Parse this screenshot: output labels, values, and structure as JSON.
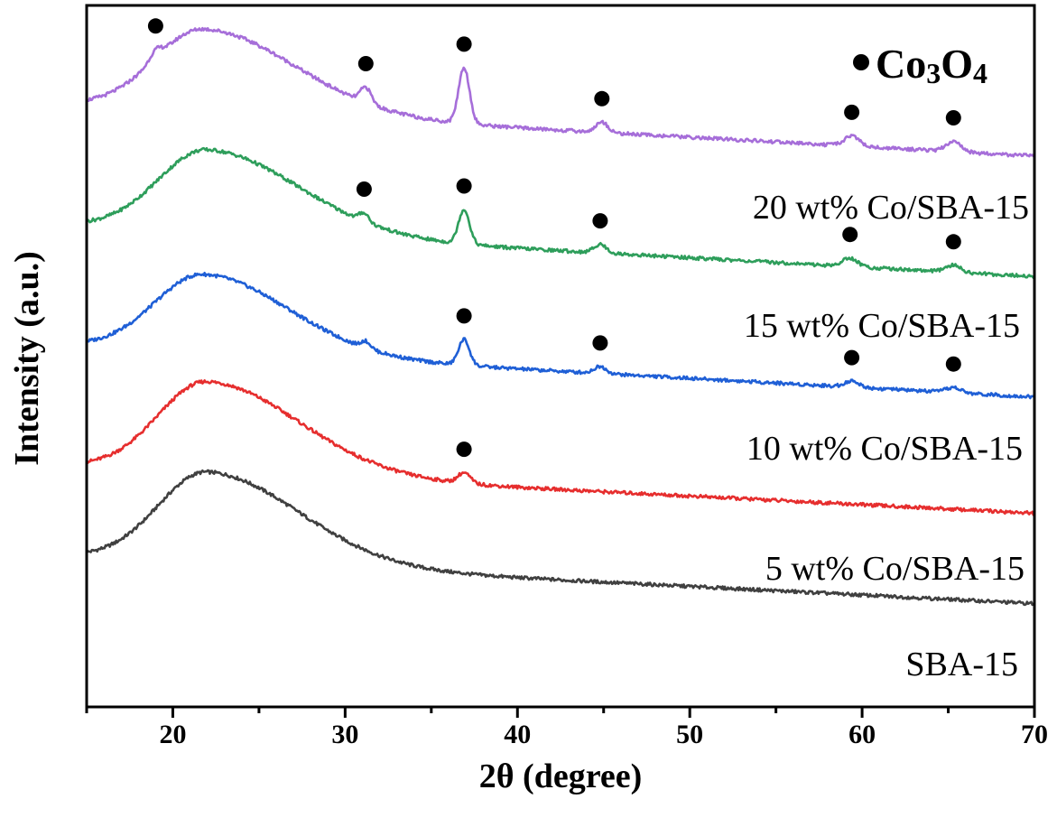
{
  "chart_data": {
    "type": "line",
    "title": "",
    "xlabel": "2θ (degree)",
    "ylabel": "Intensity (a.u.)",
    "xlim": [
      15,
      70
    ],
    "x_ticks": [
      20,
      30,
      40,
      50,
      60,
      70
    ],
    "y_ticks_shown": false,
    "legend": {
      "marker": "filled-circle",
      "formula_parts": [
        "Co",
        "3",
        "O",
        "4"
      ],
      "position": "top-right"
    },
    "series": [
      {
        "name": "SBA-15",
        "color": "#404040",
        "offset": 0,
        "hump": {
          "center": 22,
          "height": 0.105,
          "width_left": 4.0,
          "width_right": 7.5
        },
        "baseline_start": 0.055,
        "baseline_end": 0,
        "peaks": []
      },
      {
        "name": "5 wt% Co/SBA-15",
        "color": "#e62e2e",
        "offset": 0.105,
        "hump": {
          "center": 22,
          "height": 0.105,
          "width_left": 4.0,
          "width_right": 7.5
        },
        "baseline_start": 0.055,
        "baseline_end": 0,
        "peaks": [
          {
            "x": 36.9,
            "height": 0.012,
            "width": 0.5,
            "marked": true
          }
        ]
      },
      {
        "name": "10 wt% Co/SBA-15",
        "color": "#1f5fd6",
        "offset": 0.24,
        "hump": {
          "center": 21.8,
          "height": 0.09,
          "width_left": 4.0,
          "width_right": 7.0
        },
        "baseline_start": 0.06,
        "baseline_end": 0,
        "peaks": [
          {
            "x": 31.2,
            "height": 0.008,
            "width": 0.4,
            "marked": false
          },
          {
            "x": 36.9,
            "height": 0.03,
            "width": 0.45,
            "marked": true
          },
          {
            "x": 44.8,
            "height": 0.008,
            "width": 0.5,
            "marked": true
          },
          {
            "x": 59.4,
            "height": 0.007,
            "width": 0.6,
            "marked": true
          },
          {
            "x": 65.3,
            "height": 0.006,
            "width": 0.6,
            "marked": true
          }
        ]
      },
      {
        "name": "15 wt% Co/SBA-15",
        "color": "#2e9e5b",
        "offset": 0.38,
        "hump": {
          "center": 22,
          "height": 0.095,
          "width_left": 4.0,
          "width_right": 7.5
        },
        "baseline_start": 0.06,
        "baseline_end": 0,
        "peaks": [
          {
            "x": 31.1,
            "height": 0.01,
            "width": 0.4,
            "marked": true
          },
          {
            "x": 36.9,
            "height": 0.04,
            "width": 0.45,
            "marked": true
          },
          {
            "x": 44.8,
            "height": 0.01,
            "width": 0.5,
            "marked": true
          },
          {
            "x": 59.3,
            "height": 0.01,
            "width": 0.6,
            "marked": true
          },
          {
            "x": 65.3,
            "height": 0.008,
            "width": 0.6,
            "marked": true
          }
        ]
      },
      {
        "name": "20 wt% Co/SBA-15",
        "color": "#a66ed9",
        "offset": 0.52,
        "hump": {
          "center": 21.8,
          "height": 0.095,
          "width_left": 4.0,
          "width_right": 7.5
        },
        "baseline_start": 0.06,
        "baseline_end": 0,
        "peaks": [
          {
            "x": 19.0,
            "height": 0.01,
            "width": 0.5,
            "marked": true
          },
          {
            "x": 31.2,
            "height": 0.018,
            "width": 0.45,
            "marked": true
          },
          {
            "x": 36.9,
            "height": 0.065,
            "width": 0.45,
            "marked": true
          },
          {
            "x": 44.9,
            "height": 0.012,
            "width": 0.5,
            "marked": true
          },
          {
            "x": 59.4,
            "height": 0.012,
            "width": 0.6,
            "marked": true
          },
          {
            "x": 65.3,
            "height": 0.012,
            "width": 0.6,
            "marked": true
          }
        ]
      }
    ]
  }
}
